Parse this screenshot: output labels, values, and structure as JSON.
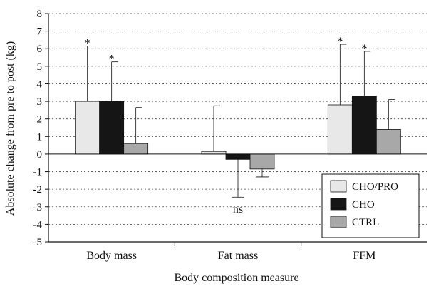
{
  "chart_data": {
    "type": "bar",
    "title": "",
    "xlabel": "Body composition measure",
    "ylabel": "Absolute change from pre to post (kg)",
    "ylim": [
      -5,
      8
    ],
    "yticks": [
      -5,
      -4,
      -3,
      -2,
      -1,
      0,
      1,
      2,
      3,
      4,
      5,
      6,
      7,
      8
    ],
    "grid": "horizontal dashed",
    "legend_position": "bottom-right",
    "categories": [
      "Body mass",
      "Fat mass",
      "FFM"
    ],
    "series": [
      {
        "name": "CHO/PRO",
        "color": "#e8e8e8",
        "values": [
          3.0,
          0.15,
          2.8
        ],
        "error_up": [
          3.15,
          2.6,
          3.45
        ],
        "error_down": [
          0,
          0,
          0
        ],
        "annotations": [
          "*",
          "",
          "*"
        ]
      },
      {
        "name": "CHO",
        "color": "#151515",
        "values": [
          3.0,
          -0.3,
          3.3
        ],
        "error_up": [
          2.25,
          0,
          2.55
        ],
        "error_down": [
          0,
          2.15,
          0
        ],
        "annotations": [
          "*",
          "ns",
          "*"
        ]
      },
      {
        "name": "CTRL",
        "color": "#a8a8a8",
        "values": [
          0.6,
          -0.85,
          1.4
        ],
        "error_up": [
          2.05,
          0,
          1.7
        ],
        "error_down": [
          0,
          0.45,
          0
        ],
        "annotations": [
          "",
          "",
          ""
        ]
      }
    ]
  }
}
